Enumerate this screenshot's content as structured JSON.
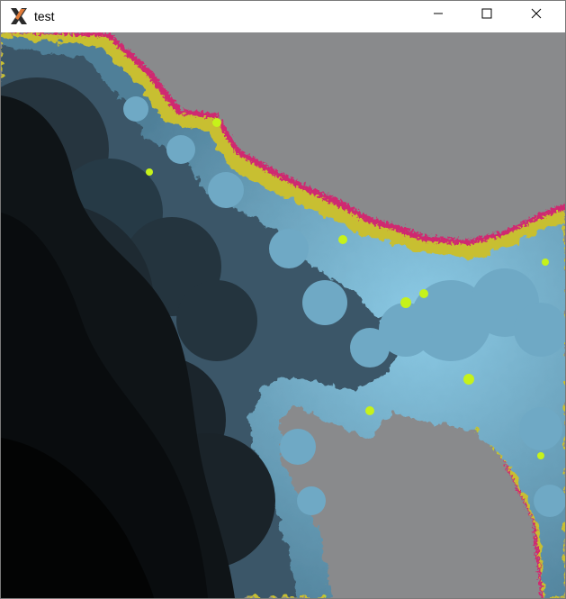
{
  "window": {
    "title": "test",
    "icon": "x-window-system-icon",
    "controls": {
      "minimize_icon": "minimize-icon",
      "maximize_icon": "maximize-icon",
      "close_icon": "close-icon"
    }
  },
  "canvas": {
    "content": "fractal-render",
    "colors": {
      "background_gray": "#898a8c",
      "interior_black": "#050607",
      "deep_slate": "#1b2329",
      "slate": "#2f4552",
      "steel_blue": "#5d8da6",
      "light_blue": "#7fbcd8",
      "lime": "#c6f21a",
      "magenta": "#d6206e"
    }
  }
}
